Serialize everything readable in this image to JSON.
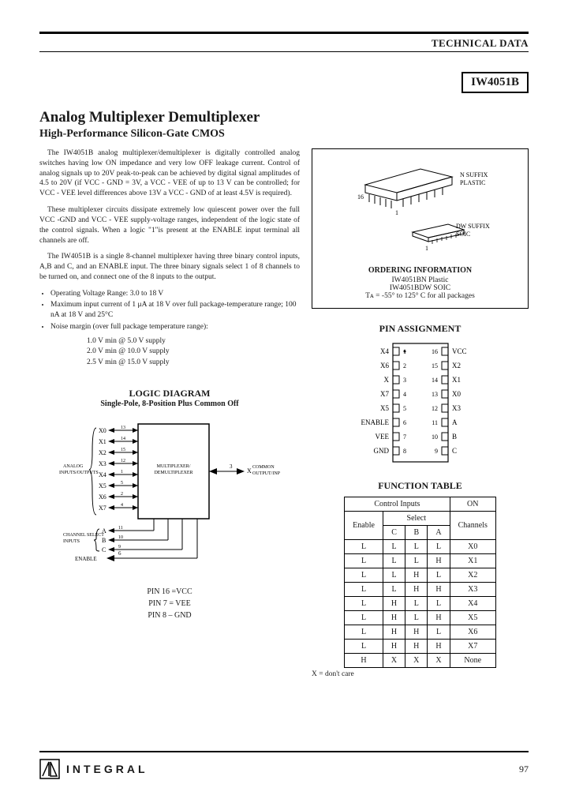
{
  "header": {
    "tech_data": "TECHNICAL DATA",
    "part_number": "IW4051B"
  },
  "titles": {
    "main": "Analog Multiplexer Demultiplexer",
    "sub": "High-Performance Silicon-Gate CMOS"
  },
  "paragraphs": {
    "p1": "The IW4051B analog multiplexer/demultiplexer is digitally controlled analog switches having low ON impedance and very low OFF leakage current. Control of analog signals up to 20V peak-to-peak can be achieved by digital signal amplitudes of 4.5 to 20V (if VCC - GND = 3V, a VCC - VEE of up to 13 V can be controlled; for VCC - VEE level differences above 13V a VCC - GND of at least 4.5V is required).",
    "p2": "These multiplexer circuits dissipate extremely low quiescent power over the full VCC -GND and VCC - VEE supply-voltage ranges, independent of the logic state of the control signals. When a logic \"1\"is present at the ENABLE input terminal all channels are off.",
    "p3": "The IW4051B is a single 8-channel multiplexer having three binary control inputs, A,B and C, and an ENABLE input. The three binary signals select 1 of 8 channels to be turned on, and connect one of the 8 inputs to the output."
  },
  "bullets": {
    "b1": "Operating Voltage Range: 3.0 to 18 V",
    "b2": "Maximum input current of 1 μA at 18 V over full package-temperature range; 100 nA at 18 V and 25°C",
    "b3": "Noise margin (over full package temperature range):",
    "s1": "1.0 V min @ 5.0 V supply",
    "s2": "2.0 V min @ 10.0 V supply",
    "s3": "2.5 V min @ 15.0 V supply"
  },
  "package": {
    "n_suffix": "N SUFFIX\nPLASTIC",
    "dw_suffix": "DW SUFFIX\nSOIC",
    "pin16": "16",
    "pin1a": "1",
    "pin1b": "1",
    "ordering_title": "ORDERING INFORMATION",
    "line1": "IW4051BN Plastic",
    "line2": "IW4051BDW SOIC",
    "line3": "Tᴀ = -55° to 125° C for all packages"
  },
  "pin_assignment": {
    "title": "PIN ASSIGNMENT",
    "left": [
      "X4",
      "X6",
      "X",
      "X7",
      "X5",
      "ENABLE",
      "VEE",
      "GND"
    ],
    "right": [
      "VCC",
      "X2",
      "X1",
      "X0",
      "X3",
      "A",
      "B",
      "C"
    ],
    "left_nums": [
      "1",
      "2",
      "3",
      "4",
      "5",
      "6",
      "7",
      "8"
    ],
    "right_nums": [
      "16",
      "15",
      "14",
      "13",
      "12",
      "11",
      "10",
      "9"
    ]
  },
  "logic": {
    "title": "LOGIC DIAGRAM",
    "sub": "Single-Pole, 8-Position Plus Common Off",
    "analog_label": "ANALOG\nINPUTS/OUTPUTS",
    "block_label": "MULTIPLEXER/\nDEMULTIPLEXER",
    "common_label": "COMMON\nOUTPUT/INPUT",
    "channel_label": "CHANNEL SELECT\nINPUTS",
    "inputs": [
      "X0",
      "X1",
      "X2",
      "X3",
      "X4",
      "X5",
      "X6",
      "X7"
    ],
    "input_pins": [
      "13",
      "14",
      "15",
      "12",
      "1",
      "5",
      "2",
      "4"
    ],
    "x_out": "X",
    "x_pin": "3",
    "select": [
      "A",
      "B",
      "C"
    ],
    "select_pins": [
      "11",
      "10",
      "9"
    ],
    "enable": "ENABLE",
    "enable_pin": "6",
    "pin16": "PIN 16 =VCC",
    "pin7": "PIN 7 = VEE",
    "pin8": "PIN 8 – GND"
  },
  "function_table": {
    "title": "FUNCTION TABLE",
    "h_control": "Control Inputs",
    "h_on": "ON",
    "h_enable": "Enable",
    "h_select": "Select",
    "h_channels": "Channels",
    "h_c": "C",
    "h_b": "B",
    "h_a": "A",
    "rows": [
      [
        "L",
        "L",
        "L",
        "L",
        "X0"
      ],
      [
        "L",
        "L",
        "L",
        "H",
        "X1"
      ],
      [
        "L",
        "L",
        "H",
        "L",
        "X2"
      ],
      [
        "L",
        "L",
        "H",
        "H",
        "X3"
      ],
      [
        "L",
        "H",
        "L",
        "L",
        "X4"
      ],
      [
        "L",
        "H",
        "L",
        "H",
        "X5"
      ],
      [
        "L",
        "H",
        "H",
        "L",
        "X6"
      ],
      [
        "L",
        "H",
        "H",
        "H",
        "X7"
      ],
      [
        "H",
        "X",
        "X",
        "X",
        "None"
      ]
    ],
    "note": "X = don't care"
  },
  "footer": {
    "brand": "INTEGRAL",
    "page": "97"
  },
  "colors": {
    "text": "#1a1a1a",
    "line": "#000000",
    "bg": "#ffffff"
  }
}
